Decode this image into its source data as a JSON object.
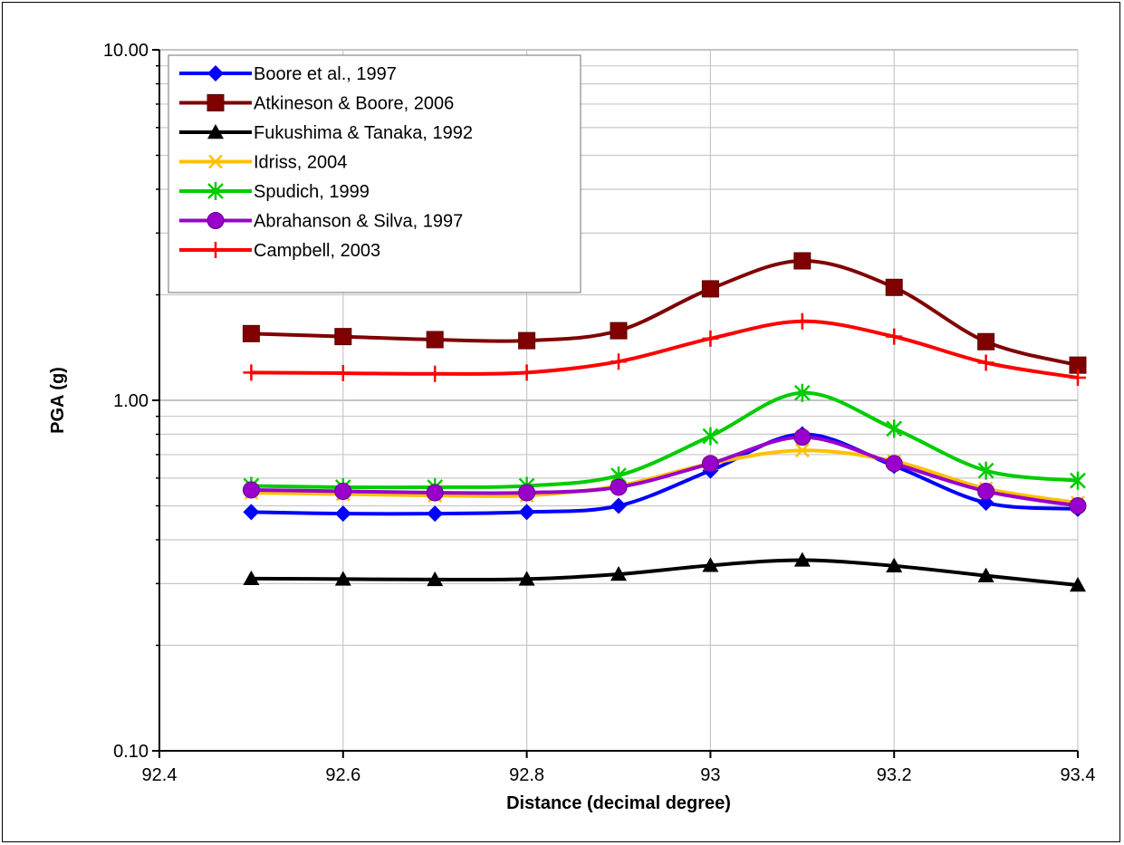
{
  "chart_data": {
    "type": "line",
    "xlabel": "Distance (decimal degree)",
    "ylabel": "PGA (g)",
    "xlim": [
      92.4,
      93.4
    ],
    "ylim": [
      0.1,
      10
    ],
    "yscale": "log",
    "x_ticks": [
      "92.4",
      "92.6",
      "92.8",
      "93",
      "93.2",
      "93.4"
    ],
    "y_ticks": [
      "0.10",
      "1.00",
      "10.00"
    ],
    "grid": "horizontal major and minor",
    "legend_position": "top-left",
    "x": [
      92.5,
      92.6,
      92.7,
      92.8,
      92.9,
      93.0,
      93.1,
      93.2,
      93.3,
      93.4
    ],
    "series": [
      {
        "name": "Boore et al., 1997",
        "color": "#0000ff",
        "marker": "diamond",
        "values": [
          0.48,
          0.475,
          0.475,
          0.48,
          0.5,
          0.63,
          0.8,
          0.65,
          0.51,
          0.49
        ]
      },
      {
        "name": "Atkineson & Boore, 2006",
        "color": "#800000",
        "marker": "square",
        "values": [
          1.55,
          1.52,
          1.49,
          1.48,
          1.58,
          2.08,
          2.5,
          2.1,
          1.47,
          1.26
        ]
      },
      {
        "name": "Fukushima & Tanaka, 1992",
        "color": "#000000",
        "marker": "triangle",
        "values": [
          0.31,
          0.309,
          0.308,
          0.309,
          0.319,
          0.338,
          0.35,
          0.337,
          0.316,
          0.297
        ]
      },
      {
        "name": "Idriss, 2004",
        "color": "#ffc000",
        "marker": "x",
        "values": [
          0.545,
          0.54,
          0.535,
          0.535,
          0.57,
          0.66,
          0.72,
          0.67,
          0.56,
          0.51
        ]
      },
      {
        "name": "Spudich, 1999",
        "color": "#00cc00",
        "marker": "star",
        "values": [
          0.57,
          0.565,
          0.565,
          0.57,
          0.61,
          0.79,
          1.05,
          0.83,
          0.63,
          0.59
        ]
      },
      {
        "name": "Abrahanson & Silva, 1997",
        "color": "#9900cc",
        "marker": "circle",
        "values": [
          0.555,
          0.55,
          0.545,
          0.545,
          0.565,
          0.66,
          0.785,
          0.66,
          0.55,
          0.5
        ]
      },
      {
        "name": "Campbell, 2003",
        "color": "#ff0000",
        "marker": "plus",
        "values": [
          1.2,
          1.195,
          1.19,
          1.2,
          1.29,
          1.5,
          1.68,
          1.52,
          1.28,
          1.16
        ]
      }
    ]
  }
}
